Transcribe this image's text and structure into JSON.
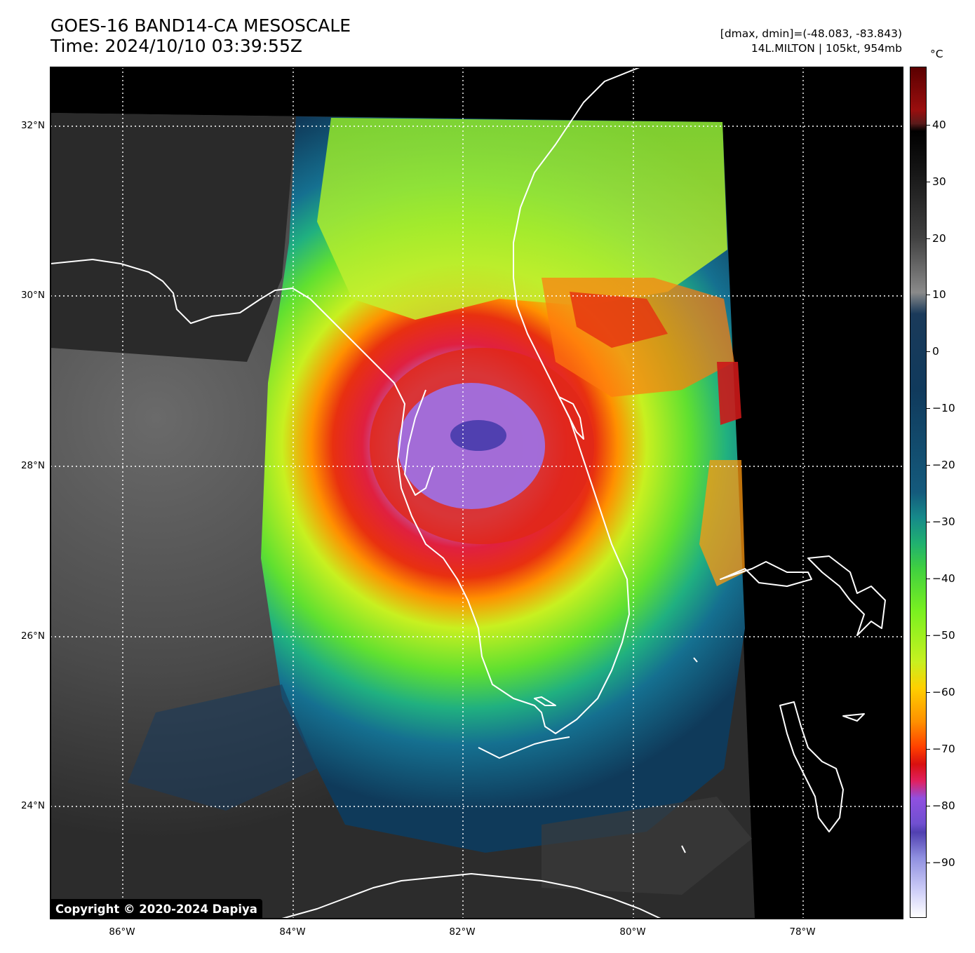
{
  "header": {
    "title_line1": "GOES-16 BAND14-CA MESOSCALE",
    "title_line2": "Time: 2024/10/10 03:39:55Z",
    "info_line1": "[dmax, dmin]=(-48.083, -83.843)",
    "info_line2": "14L.MILTON | 105kt, 954mb"
  },
  "map": {
    "copyright": "Copyright © 2020-2024 Dapiya",
    "lat_labels": [
      "32°N",
      "30°N",
      "28°N",
      "26°N",
      "24°N"
    ],
    "lon_labels": [
      "86°W",
      "84°W",
      "82°W",
      "80°W",
      "78°W"
    ],
    "storm": "14L.MILTON"
  },
  "colorbar": {
    "unit": "°C",
    "labels": [
      "40",
      "30",
      "20",
      "10",
      "0",
      "−10",
      "−20",
      "−30",
      "−40",
      "−50",
      "−60",
      "−70",
      "−80",
      "−90"
    ],
    "colors": {
      "warmest": "#5a0000",
      "background": "#000000",
      "clear_land_gray": "#404040",
      "low_cloud_blue": "#103a5c",
      "mid_cloud_green": "#40d040",
      "cold_top_yellow": "#ffd000",
      "cold_top_red": "#d81010",
      "coldest_purple": "#9050e0",
      "min_white": "#ffffff"
    }
  }
}
